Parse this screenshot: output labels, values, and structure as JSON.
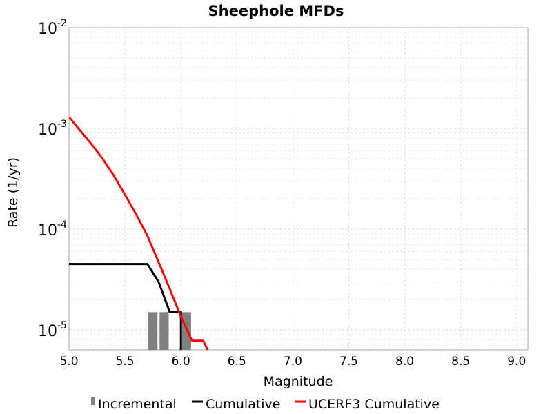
{
  "chart_data": {
    "type": "line",
    "title": "Sheephole MFDs",
    "xlabel": "Magnitude",
    "ylabel": "Rate (1/yr)",
    "xlim": [
      5.0,
      9.1
    ],
    "ylim": [
      6.3e-06,
      0.01
    ],
    "yscale": "log",
    "grid": true,
    "legend_position": "bottom",
    "x_ticks": [
      "5.0",
      "5.5",
      "6.0",
      "6.5",
      "7.0",
      "7.5",
      "8.0",
      "8.5",
      "9.0"
    ],
    "y_ticks": [
      {
        "base": "10",
        "exp": "-2",
        "value": 0.01
      },
      {
        "base": "10",
        "exp": "-3",
        "value": 0.001
      },
      {
        "base": "10",
        "exp": "-4",
        "value": 0.0001
      },
      {
        "base": "10",
        "exp": "-5",
        "value": 1e-05
      }
    ],
    "incremental": {
      "name": "Incremental",
      "color": "#808080",
      "bars": [
        {
          "x": 5.75,
          "value": 1.5e-05
        },
        {
          "x": 5.85,
          "value": 1.5e-05
        },
        {
          "x": 6.05,
          "value": 1.5e-05
        }
      ]
    },
    "series": [
      {
        "name": "Cumulative",
        "color": "#000000",
        "points": [
          [
            5.0,
            4.5e-05
          ],
          [
            5.7,
            4.5e-05
          ],
          [
            5.8,
            3e-05
          ],
          [
            5.9,
            1.5e-05
          ],
          [
            6.0,
            1.5e-05
          ],
          [
            6.0,
            1e-06
          ]
        ]
      },
      {
        "name": "UCERF3 Cumulative",
        "color": "#ff0000",
        "points": [
          [
            5.0,
            0.0013
          ],
          [
            5.1,
            0.00095
          ],
          [
            5.2,
            0.0007
          ],
          [
            5.3,
            0.0005
          ],
          [
            5.4,
            0.00034
          ],
          [
            5.5,
            0.00022
          ],
          [
            5.6,
            0.00014
          ],
          [
            5.7,
            8.63e-05
          ],
          [
            5.8,
            4.71e-05
          ],
          [
            5.9,
            2.55e-05
          ],
          [
            6.0,
            1.35e-05
          ],
          [
            6.1,
            7.8e-06
          ],
          [
            6.2,
            7.8e-06
          ],
          [
            6.3,
            4.5e-06
          ]
        ]
      }
    ]
  }
}
